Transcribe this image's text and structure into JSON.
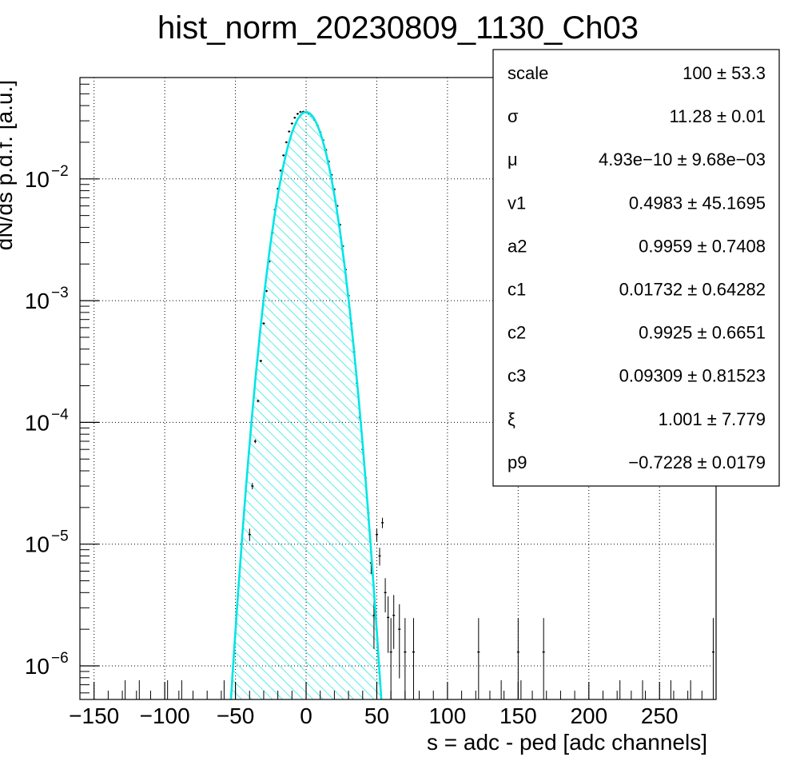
{
  "chart_data": {
    "type": "histogram",
    "title": "hist_norm_20230809_1130_Ch03",
    "xlabel": "s = adc - ped [adc channels]",
    "ylabel": "dN/ds p.d.f. [a.u.]",
    "xlim": [
      -160,
      290
    ],
    "ylim": [
      5.3e-07,
      0.068
    ],
    "y_scale": "log",
    "grid": true,
    "x_ticks": [
      {
        "value": -150,
        "label": "−150"
      },
      {
        "value": -100,
        "label": "−100"
      },
      {
        "value": -50,
        "label": "−50"
      },
      {
        "value": 0,
        "label": "0"
      },
      {
        "value": 50,
        "label": "50"
      },
      {
        "value": 100,
        "label": "100"
      },
      {
        "value": 150,
        "label": "150"
      },
      {
        "value": 200,
        "label": "200"
      },
      {
        "value": 250,
        "label": "250"
      }
    ],
    "y_ticks": [
      {
        "value": 1e-06,
        "base": "10",
        "exp": "−6"
      },
      {
        "value": 1e-05,
        "base": "10",
        "exp": "−5"
      },
      {
        "value": 0.0001,
        "base": "10",
        "exp": "−4"
      },
      {
        "value": 0.001,
        "base": "10",
        "exp": "−3"
      },
      {
        "value": 0.01,
        "base": "10",
        "exp": "−2"
      }
    ],
    "fit_parameters": {
      "sigma": 11.28,
      "mu": 4.93e-10,
      "peak": 0.0354
    },
    "data_points": {
      "x": [
        -40,
        -38,
        -36,
        -34,
        -32,
        -30,
        -28,
        -26,
        -24,
        -22,
        -20,
        -18,
        -16,
        -14,
        -12,
        -10,
        -8,
        -6,
        -4,
        -2,
        0,
        2,
        4,
        6,
        8,
        10,
        12,
        14,
        16,
        18,
        20,
        22,
        24,
        26,
        28,
        30,
        32,
        34,
        36,
        38,
        40,
        42,
        44,
        46,
        48,
        50,
        52,
        54,
        56,
        58,
        60,
        62,
        66,
        70,
        76,
        122,
        150,
        168,
        288
      ],
      "y": [
        1.2e-05,
        3e-05,
        7e-05,
        0.00015,
        0.00032,
        0.00065,
        0.0012,
        0.0021,
        0.0036,
        0.0056,
        0.0083,
        0.0117,
        0.0156,
        0.02,
        0.0245,
        0.0285,
        0.0318,
        0.0342,
        0.0355,
        0.0356,
        0.0354,
        0.0345,
        0.033,
        0.0305,
        0.0275,
        0.0242,
        0.0208,
        0.0173,
        0.0139,
        0.0108,
        0.0082,
        0.006,
        0.0042,
        0.0028,
        0.0018,
        0.0011,
        0.00065,
        0.00038,
        0.00021,
        0.00011,
        6e-05,
        3.5e-05,
        1.8e-05,
        7e-06,
        2.6e-06,
        1.2e-05,
        8e-06,
        1.5e-05,
        4e-06,
        2.5e-06,
        1.3e-06,
        2.6e-06,
        2e-06,
        1.3e-06,
        1.3e-06,
        1.3e-06,
        1.3e-06,
        1.3e-06,
        1.3e-06
      ]
    },
    "series": [
      {
        "name": "histogram",
        "color": "#000000"
      },
      {
        "name": "fit",
        "color": "#00e5e5"
      }
    ],
    "stats_box": {
      "position": "top-right",
      "entries": [
        {
          "label": "scale",
          "value": "100 ± 53.3"
        },
        {
          "label": "σ",
          "value": "11.28 ± 0.01"
        },
        {
          "label": "μ",
          "value": "4.93e−10 ± 9.68e−03"
        },
        {
          "label": "v1",
          "value": "0.4983 ± 45.1695"
        },
        {
          "label": "a2",
          "value": "0.9959 ± 0.7408"
        },
        {
          "label": "c1",
          "value": "0.01732 ± 0.64282"
        },
        {
          "label": "c2",
          "value": "0.9925 ± 0.6651"
        },
        {
          "label": "c3",
          "value": "0.09309 ± 0.81523"
        },
        {
          "label": "ξ",
          "value": "1.001 ± 7.779"
        },
        {
          "label": "p9",
          "value": "−0.7228 ± 0.0179"
        }
      ]
    }
  }
}
